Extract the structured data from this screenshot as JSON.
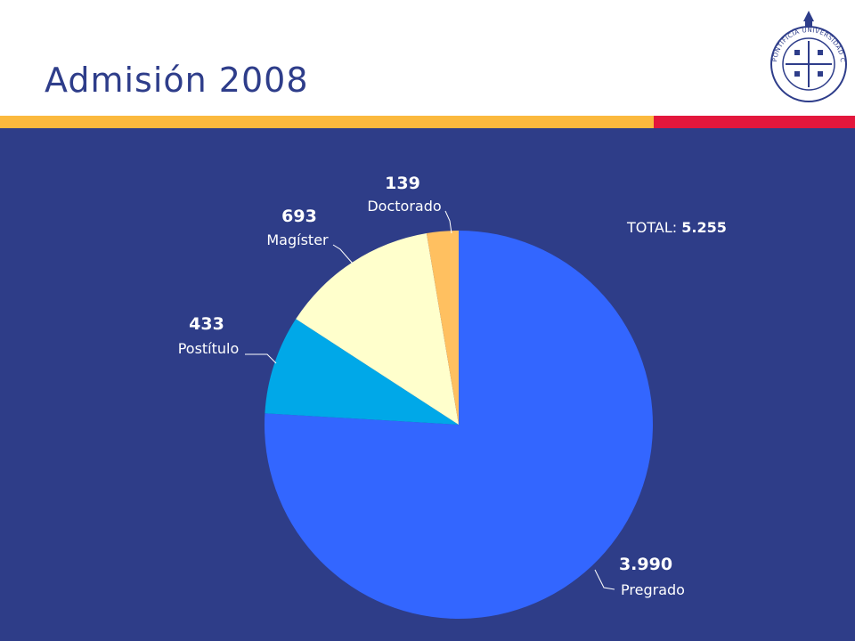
{
  "header": {
    "title": "Admisión 2008"
  },
  "total": {
    "label": "TOTAL:",
    "value": "5.255"
  },
  "colors": {
    "panel": "#2e3d88",
    "title": "#2e3d8a",
    "band_yellow": "#fbb93e",
    "band_red": "#e3173c"
  },
  "logo": {
    "icon": "university-seal-icon",
    "text": "PONTIFICIA UNIVERSIDAD CATÓLICA DE CHILE"
  },
  "chart_data": {
    "type": "pie",
    "categories": [
      "Pregrado",
      "Postítulo",
      "Magíster",
      "Doctorado"
    ],
    "values": [
      3990,
      433,
      693,
      139
    ],
    "value_labels": [
      "3.990",
      "433",
      "693",
      "139"
    ],
    "colors": [
      "#3366ff",
      "#00a8e8",
      "#ffffcc",
      "#ffc060"
    ],
    "start": "12 o'clock",
    "direction": "clockwise"
  }
}
